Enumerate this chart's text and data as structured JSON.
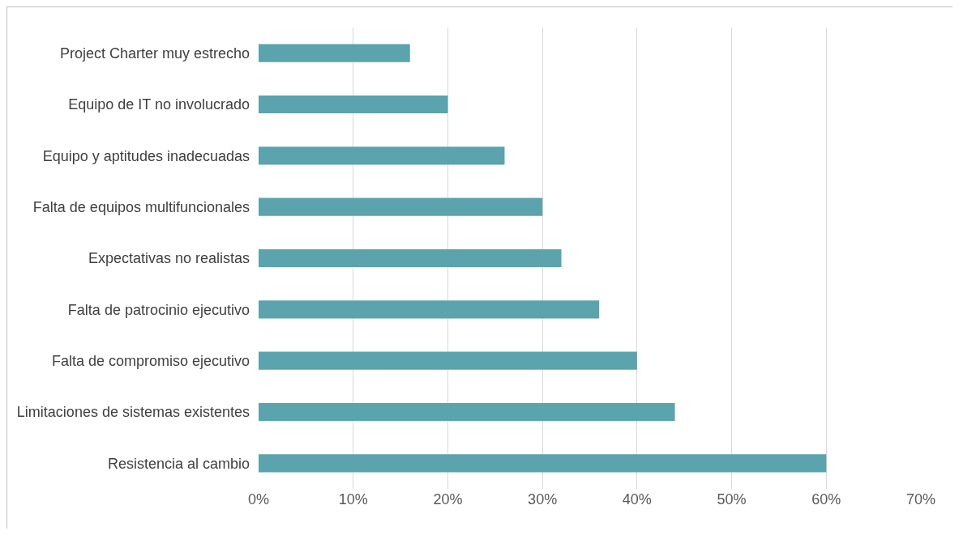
{
  "chart_data": {
    "type": "bar",
    "orientation": "horizontal",
    "categories": [
      "Project Charter muy estrecho",
      "Equipo de IT no involucrado",
      "Equipo y aptitudes inadecuadas",
      "Falta de equipos multifuncionales",
      "Expectativas no realistas",
      "Falta de patrocinio ejecutivo",
      "Falta de compromiso ejecutivo",
      "Limitaciones de sistemas existentes",
      "Resistencia al cambio"
    ],
    "values": [
      16,
      20,
      26,
      30,
      32,
      36,
      40,
      44,
      60
    ],
    "color": "#5ba3ad",
    "xlim": [
      0,
      70
    ],
    "xticks": [
      {
        "value": 0,
        "label": "0%"
      },
      {
        "value": 10,
        "label": "10%"
      },
      {
        "value": 20,
        "label": "20%"
      },
      {
        "value": 30,
        "label": "30%"
      },
      {
        "value": 40,
        "label": "40%"
      },
      {
        "value": 50,
        "label": "50%"
      },
      {
        "value": 60,
        "label": "60%"
      },
      {
        "value": 70,
        "label": "70%"
      }
    ],
    "grid": "x"
  }
}
